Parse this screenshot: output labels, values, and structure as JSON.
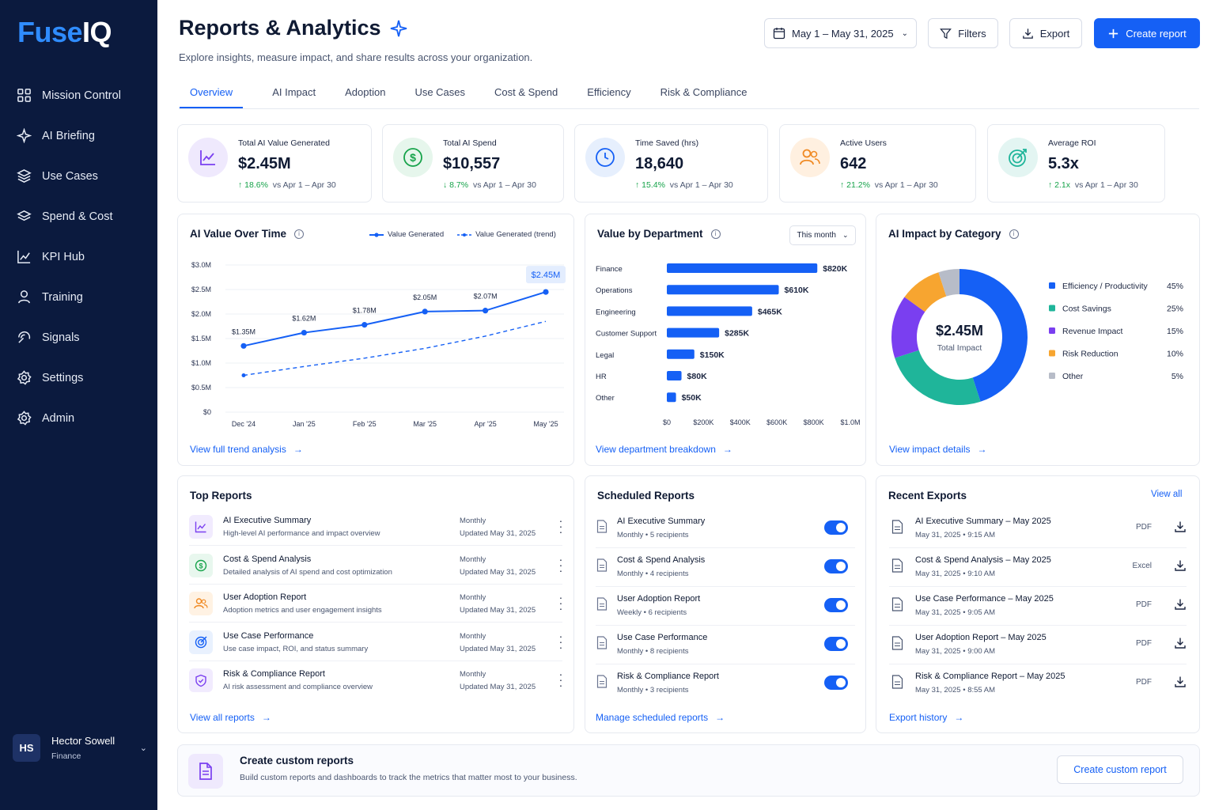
{
  "app": {
    "logo_main": "Fuse",
    "logo_accent": "IQ"
  },
  "sidebar": {
    "items": [
      {
        "label": "Mission Control"
      },
      {
        "label": "AI Briefing"
      },
      {
        "label": "Use Cases"
      },
      {
        "label": "Spend & Cost"
      },
      {
        "label": "KPI Hub"
      },
      {
        "label": "Training"
      },
      {
        "label": "Signals"
      },
      {
        "label": "Settings"
      },
      {
        "label": "Admin"
      }
    ],
    "user": {
      "initials": "HS",
      "name": "Hector Sowell",
      "role": "Finance"
    }
  },
  "header": {
    "title": "Reports & Analytics",
    "subtitle": "Explore insights, measure impact, and share results across your organization.",
    "date_range": "May 1 – May 31, 2025",
    "filters": "Filters",
    "export": "Export",
    "create": "Create report"
  },
  "tabs": [
    "Overview",
    "AI Impact",
    "Adoption",
    "Use Cases",
    "Cost & Spend",
    "Efficiency",
    "Risk & Compliance"
  ],
  "kpis": [
    {
      "label": "Total AI Value Generated",
      "value": "$2.45M",
      "delta": "18.6%",
      "dir": "up",
      "compare": "vs Apr 1 – Apr 30"
    },
    {
      "label": "Total AI Spend",
      "value": "$10,557",
      "delta": "8.7%",
      "dir": "down",
      "compare": "vs Apr 1 – Apr 30"
    },
    {
      "label": "Time Saved (hrs)",
      "value": "18,640",
      "delta": "15.4%",
      "dir": "up",
      "compare": "vs Apr 1 – Apr 30"
    },
    {
      "label": "Active Users",
      "value": "642",
      "delta": "21.2%",
      "dir": "up",
      "compare": "vs Apr 1 – Apr 30"
    },
    {
      "label": "Average ROI",
      "value": "5.3x",
      "delta": "2.1x",
      "dir": "up",
      "compare": "vs Apr 1 – Apr 30"
    }
  ],
  "value_over_time": {
    "title": "AI Value Over Time",
    "legend_value": "Value Generated",
    "legend_trend": "Value Generated (trend)",
    "link": "View full trend analysis",
    "highlight": "$2.45M"
  },
  "department": {
    "title": "Value by Department",
    "period": "This month",
    "link": "View department breakdown"
  },
  "impact": {
    "title": "AI Impact by Category",
    "center_value": "$2.45M",
    "center_label": "Total Impact",
    "link": "View impact details"
  },
  "chart_data": [
    {
      "type": "line",
      "title": "AI Value Over Time",
      "x": [
        "Dec '24",
        "Jan '25",
        "Feb '25",
        "Mar '25",
        "Apr '25",
        "May '25"
      ],
      "yticks": [
        "$0",
        "$0.5M",
        "$1.0M",
        "$1.5M",
        "$2.0M",
        "$2.5M",
        "$3.0M"
      ],
      "ylim": [
        0,
        3.0
      ],
      "series": [
        {
          "name": "Value Generated",
          "values": [
            1.35,
            1.62,
            1.78,
            2.05,
            2.07,
            2.45
          ],
          "labels": [
            "$1.35M",
            "$1.62M",
            "$1.78M",
            "$2.05M",
            "$2.07M",
            "$2.45M"
          ]
        },
        {
          "name": "Value Generated (trend)",
          "values": [
            0.75,
            0.93,
            1.1,
            1.3,
            1.55,
            1.85
          ]
        }
      ],
      "legend": "top-right"
    },
    {
      "type": "bar",
      "title": "Value by Department",
      "categories": [
        "Finance",
        "Operations",
        "Engineering",
        "Customer Support",
        "Legal",
        "HR",
        "Other"
      ],
      "values": [
        820,
        610,
        465,
        285,
        150,
        80,
        50
      ],
      "labels": [
        "$820K",
        "$610K",
        "$465K",
        "$285K",
        "$150K",
        "$80K",
        "$50K"
      ],
      "xticks": [
        "$0",
        "$200K",
        "$400K",
        "$600K",
        "$800K",
        "$1.0M"
      ],
      "xlim": [
        0,
        1000
      ],
      "color": "#1560f5"
    },
    {
      "type": "pie",
      "title": "AI Impact by Category",
      "categories": [
        "Efficiency / Productivity",
        "Cost Savings",
        "Revenue Impact",
        "Risk Reduction",
        "Other"
      ],
      "values": [
        45,
        25,
        15,
        10,
        5
      ],
      "labels": [
        "45%",
        "25%",
        "15%",
        "10%",
        "5%"
      ],
      "colors": [
        "#1560f5",
        "#1fb59a",
        "#7a3ff0",
        "#f7a530",
        "#b7bcc8"
      ],
      "legend": "right"
    }
  ],
  "top_reports": {
    "title": "Top Reports",
    "link": "View all reports",
    "items": [
      {
        "name": "AI Executive Summary",
        "desc": "High-level AI performance and impact overview",
        "freq": "Monthly",
        "updated": "Updated May 31, 2025",
        "icon": "chart-icon",
        "color": "#7a3ff0",
        "bg": "#f1ebfe"
      },
      {
        "name": "Cost & Spend Analysis",
        "desc": "Detailed analysis of AI spend and cost optimization",
        "freq": "Monthly",
        "updated": "Updated May 31, 2025",
        "icon": "dollar-icon",
        "color": "#16a34a",
        "bg": "#e8f7ee"
      },
      {
        "name": "User Adoption Report",
        "desc": "Adoption metrics and user engagement insights",
        "freq": "Monthly",
        "updated": "Updated May 31, 2025",
        "icon": "users-icon",
        "color": "#f08a24",
        "bg": "#fff2e3"
      },
      {
        "name": "Use Case Performance",
        "desc": "Use case impact, ROI, and status summary",
        "freq": "Monthly",
        "updated": "Updated May 31, 2025",
        "icon": "target-icon",
        "color": "#1560f5",
        "bg": "#e9f1fe"
      },
      {
        "name": "Risk & Compliance Report",
        "desc": "AI risk assessment and compliance overview",
        "freq": "Monthly",
        "updated": "Updated May 31, 2025",
        "icon": "shield-icon",
        "color": "#7a3ff0",
        "bg": "#f1ebfe"
      }
    ]
  },
  "scheduled": {
    "title": "Scheduled Reports",
    "link": "Manage scheduled reports",
    "items": [
      {
        "name": "AI Executive Summary",
        "freq": "Monthly",
        "recipients": "5 recipients",
        "enabled": true
      },
      {
        "name": "Cost & Spend Analysis",
        "freq": "Monthly",
        "recipients": "4 recipients",
        "enabled": true
      },
      {
        "name": "User Adoption Report",
        "freq": "Weekly",
        "recipients": "6 recipients",
        "enabled": true
      },
      {
        "name": "Use Case Performance",
        "freq": "Monthly",
        "recipients": "8 recipients",
        "enabled": true
      },
      {
        "name": "Risk & Compliance Report",
        "freq": "Monthly",
        "recipients": "3 recipients",
        "enabled": true
      }
    ]
  },
  "exports": {
    "title": "Recent Exports",
    "view_all": "View all",
    "link": "Export history",
    "items": [
      {
        "name": "AI Executive Summary – May 2025",
        "date": "May 31, 2025",
        "time": "9:15 AM",
        "format": "PDF"
      },
      {
        "name": "Cost & Spend Analysis – May 2025",
        "date": "May 31, 2025",
        "time": "9:10 AM",
        "format": "Excel"
      },
      {
        "name": "Use Case Performance – May 2025",
        "date": "May 31, 2025",
        "time": "9:05 AM",
        "format": "PDF"
      },
      {
        "name": "User Adoption Report – May 2025",
        "date": "May 31, 2025",
        "time": "9:00 AM",
        "format": "PDF"
      },
      {
        "name": "Risk & Compliance Report – May 2025",
        "date": "May 31, 2025",
        "time": "8:55 AM",
        "format": "PDF"
      }
    ]
  },
  "custom": {
    "title": "Create custom reports",
    "desc": "Build custom reports and dashboards to track the metrics that matter most to your business.",
    "button": "Create custom report"
  }
}
